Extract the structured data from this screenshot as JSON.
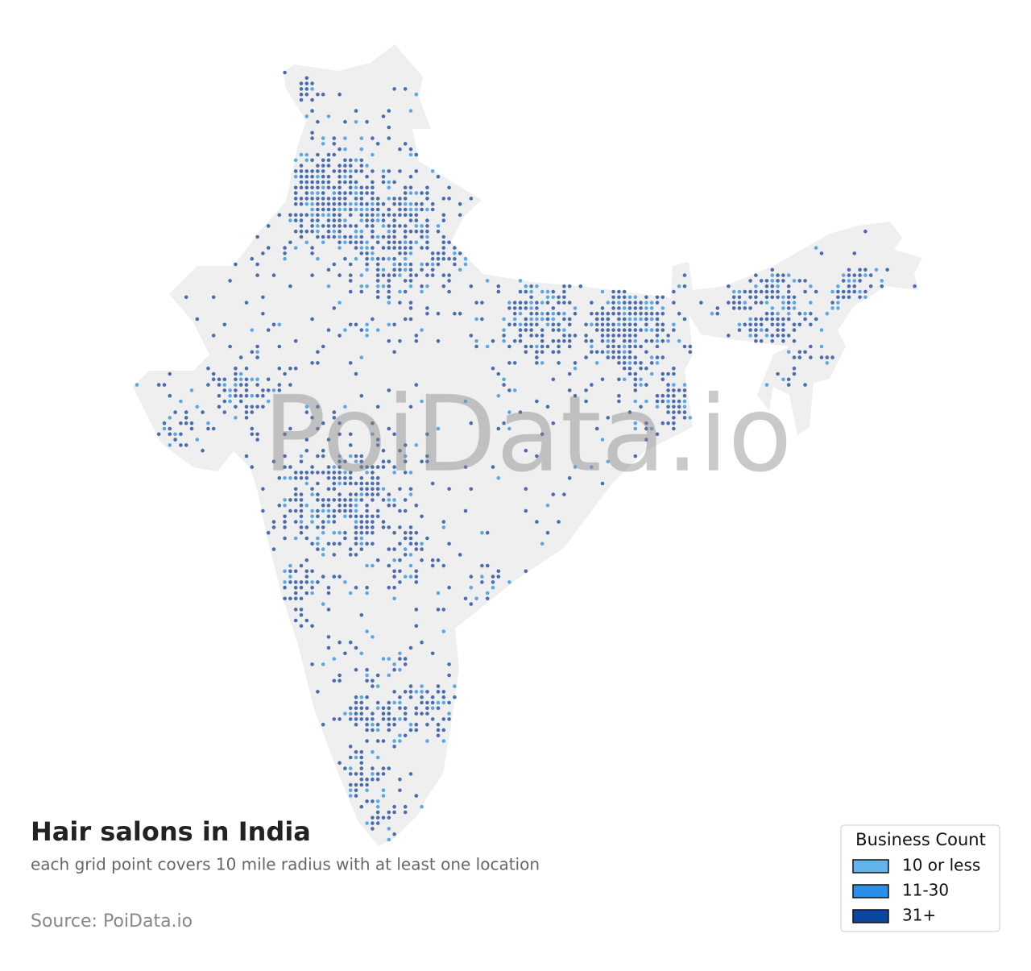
{
  "map": {
    "title": "Hair salons in India",
    "subtitle": "each grid point covers 10 mile radius with at least one location",
    "source": "Source: PoiData.io",
    "watermark": "PoiData.io",
    "legend": {
      "title": "Business Count",
      "items": [
        {
          "label": "10 or less",
          "color": "#63b3ed"
        },
        {
          "label": "11-30",
          "color": "#2b8ee8"
        },
        {
          "label": "31+",
          "color": "#0b47a1"
        }
      ]
    }
  }
}
